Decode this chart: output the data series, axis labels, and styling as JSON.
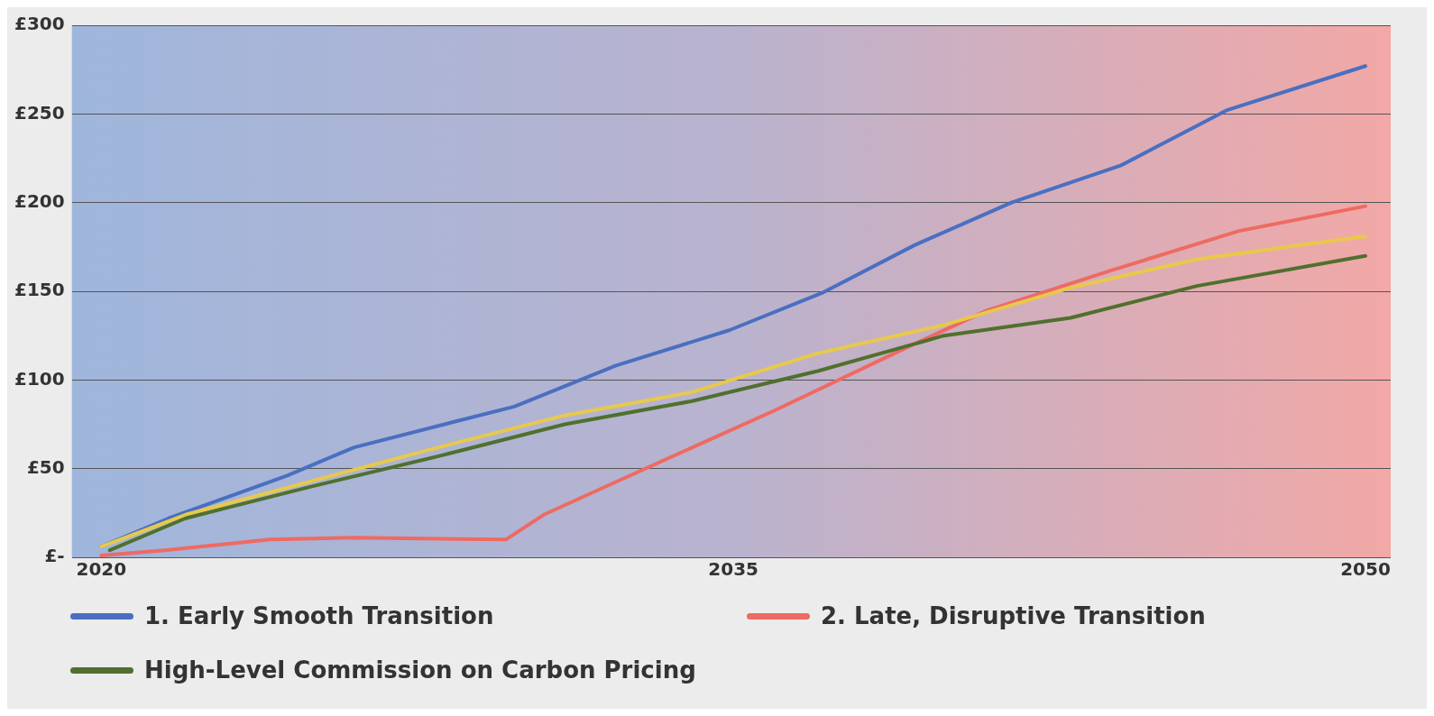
{
  "chart_data": {
    "type": "line",
    "xlim": [
      2019.3,
      2050.6
    ],
    "xticks": [
      2020,
      2035,
      2050
    ],
    "ylim": [
      0,
      300
    ],
    "yticks": [
      {
        "value": 0,
        "label": "£-"
      },
      {
        "value": 50,
        "label": "£50"
      },
      {
        "value": 100,
        "label": "£100"
      },
      {
        "value": 150,
        "label": "£150"
      },
      {
        "value": 200,
        "label": "£200"
      },
      {
        "value": 250,
        "label": "£250"
      },
      {
        "value": 300,
        "label": "£300"
      }
    ],
    "grid": "y",
    "legend": "bottom",
    "marker": "none",
    "line_style": "solid",
    "series": [
      {
        "name": "1. Early Smooth Transition",
        "color": "#4a6fc0",
        "x": [
          2020,
          2021.6,
          2024.4,
          2026,
          2029.8,
          2032.2,
          2034.9,
          2037.1,
          2039.3,
          2041.6,
          2044.2,
          2046.7,
          2050
        ],
        "values": [
          6,
          22,
          46,
          62,
          85,
          108,
          128,
          149,
          176,
          200,
          221,
          252,
          277
        ]
      },
      {
        "name": "2. Late, Disruptive Transition",
        "color": "#ee6a62",
        "x": [
          2020,
          2021.5,
          2024,
          2026,
          2029.6,
          2030.5,
          2033,
          2036,
          2039,
          2041,
          2044,
          2047,
          2050
        ],
        "values": [
          1,
          4,
          10,
          11,
          10,
          24,
          51,
          83,
          117,
          139,
          162,
          184,
          198
        ]
      },
      {
        "color": "#e8c94a",
        "x": [
          2020,
          2022,
          2025,
          2028,
          2031,
          2034,
          2037,
          2040,
          2043,
          2046,
          2050
        ],
        "values": [
          6,
          24,
          43,
          62,
          80,
          93,
          115,
          131,
          152,
          168,
          181
        ]
      },
      {
        "name": "High-Level Commission on Carbon Pricing",
        "color": "#50702e",
        "x": [
          2020.2,
          2022,
          2025,
          2028,
          2031,
          2034,
          2037,
          2040,
          2043,
          2046,
          2050
        ],
        "values": [
          4,
          22,
          40,
          57,
          75,
          88,
          105,
          125,
          135,
          153,
          170
        ]
      }
    ]
  }
}
